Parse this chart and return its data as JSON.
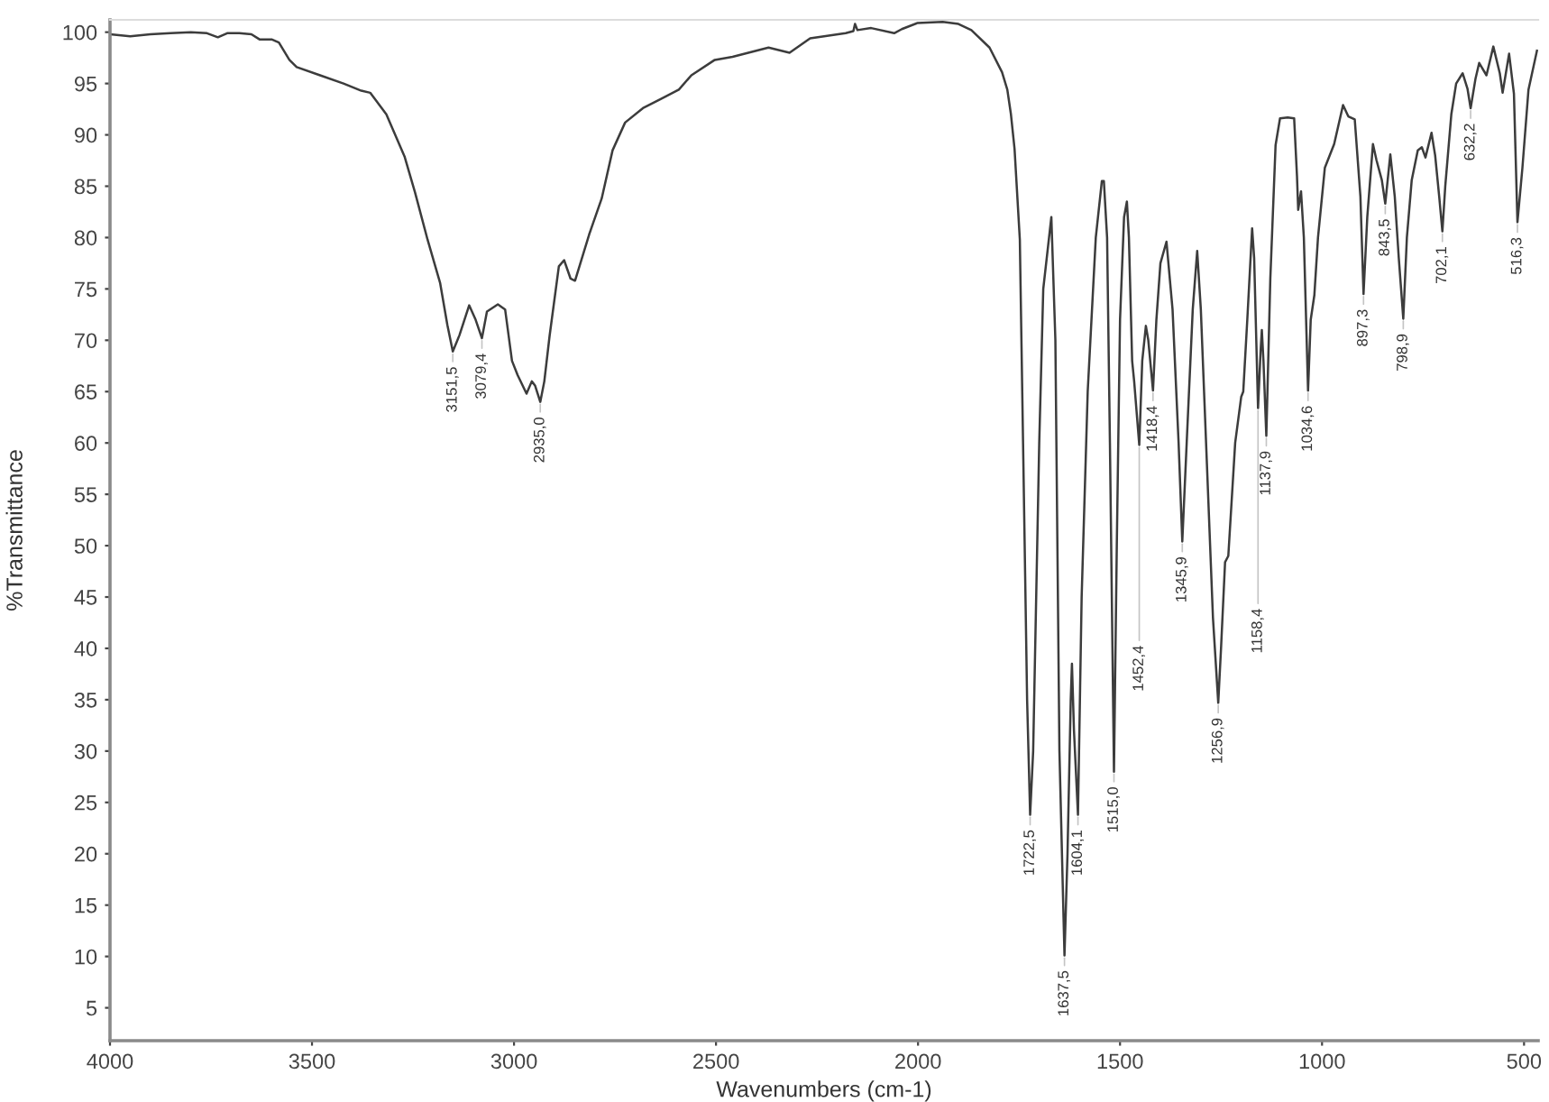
{
  "chart_data": {
    "type": "line",
    "xlabel": "Wavenumbers (cm-1)",
    "ylabel": "%Transmittance",
    "xlim": [
      4000,
      465
    ],
    "ylim": [
      1.8,
      101.2
    ],
    "xticks": [
      4000,
      3500,
      3000,
      2500,
      2000,
      1500,
      1000,
      500
    ],
    "yticks": [
      5,
      10,
      15,
      20,
      25,
      30,
      35,
      40,
      45,
      50,
      55,
      60,
      65,
      70,
      75,
      80,
      85,
      90,
      95,
      100
    ],
    "grid": false,
    "series": [
      {
        "color": "#3c3c3c",
        "x": [
          4000,
          3950,
          3900,
          3850,
          3800,
          3760,
          3733,
          3710,
          3680,
          3650,
          3630,
          3600,
          3582,
          3556,
          3538,
          3480,
          3422,
          3378,
          3356,
          3316,
          3271,
          3245,
          3214,
          3183,
          3165,
          3151.5,
          3135,
          3111,
          3095,
          3079.4,
          3067,
          3040,
          3022,
          3005,
          2991,
          2969,
          2956,
          2948,
          2935.0,
          2925,
          2912,
          2889,
          2876,
          2860,
          2849,
          2814,
          2783,
          2756,
          2725,
          2681,
          2636,
          2592,
          2561,
          2503,
          2459,
          2420,
          2370,
          2318,
          2267,
          2179,
          2160,
          2156,
          2150,
          2116,
          2059,
          2040,
          2001,
          1939,
          1900,
          1868,
          1823,
          1792,
          1779,
          1770,
          1761,
          1748,
          1740,
          1730,
          1722.5,
          1715,
          1700,
          1690,
          1670,
          1660,
          1650,
          1637.5,
          1630,
          1622,
          1619,
          1614,
          1604.1,
          1595,
          1580,
          1560,
          1545,
          1540,
          1532,
          1525,
          1515.0,
          1508,
          1500,
          1490,
          1483,
          1478,
          1470,
          1465,
          1452.4,
          1445,
          1436,
          1430,
          1418.4,
          1410,
          1400,
          1385,
          1370,
          1355,
          1345.9,
          1335,
          1320,
          1309,
          1300,
          1285,
          1270,
          1256.9,
          1250,
          1240,
          1232,
          1215,
          1200,
          1195,
          1185,
          1173,
          1168,
          1158.4,
          1152,
          1149,
          1145,
          1137.9,
          1128,
          1115,
          1104,
          1085,
          1069,
          1062,
          1059,
          1052,
          1045,
          1034.6,
          1028,
          1019,
          1010,
          993,
          970,
          948,
          935,
          919,
          905,
          897.3,
          888,
          874,
          865,
          852,
          843.5,
          831,
          820,
          810,
          798.9,
          790,
          778,
          763,
          753,
          744,
          729,
          720,
          710,
          702.1,
          695,
          680,
          668,
          652,
          640,
          632.2,
          620,
          611,
          593,
          576,
          560,
          553,
          545,
          537,
          525,
          516.3,
          504,
          489,
          468
        ],
        "values": [
          99.8,
          99.6,
          99.8,
          99.9,
          100.0,
          99.9,
          99.5,
          99.9,
          99.9,
          99.8,
          99.3,
          99.3,
          99.0,
          97.3,
          96.6,
          95.8,
          95.0,
          94.3,
          94.1,
          92.0,
          87.9,
          84.4,
          79.8,
          75.6,
          71.5,
          68.9,
          70.5,
          73.4,
          72.0,
          70.2,
          72.8,
          73.5,
          73.0,
          68.0,
          66.6,
          64.8,
          66.0,
          65.6,
          64.0,
          66.0,
          70.4,
          77.2,
          77.8,
          76.0,
          75.8,
          80.3,
          83.8,
          88.5,
          91.2,
          92.6,
          93.5,
          94.4,
          95.8,
          97.3,
          97.6,
          98.0,
          98.5,
          98.0,
          99.4,
          99.9,
          100.1,
          100.8,
          100.2,
          100.4,
          99.9,
          100.3,
          100.9,
          101.0,
          100.8,
          100.2,
          98.5,
          96.1,
          94.4,
          92.0,
          88.6,
          79.8,
          60,
          35,
          23.8,
          30,
          60,
          75,
          82,
          70,
          30,
          10.1,
          20,
          35,
          38.5,
          32,
          23.8,
          45,
          65,
          80,
          85.5,
          85.5,
          80,
          60,
          28.0,
          50,
          72,
          82,
          83.5,
          80,
          68,
          66,
          59.8,
          68,
          71.4,
          70,
          65.1,
          72,
          77.5,
          79.6,
          73,
          60,
          50.4,
          60,
          73,
          78.7,
          73,
          58,
          43,
          34.7,
          40,
          48.4,
          49,
          60,
          64.5,
          65.0,
          72,
          80.9,
          78,
          63.4,
          69,
          71.0,
          68,
          60.7,
          76,
          89,
          91.6,
          91.7,
          91.6,
          86,
          82.7,
          84.5,
          80,
          65.1,
          72,
          74.4,
          80,
          86.8,
          89.1,
          92.9,
          91.8,
          91.5,
          84,
          74.5,
          82,
          89.1,
          87.5,
          85.6,
          83.3,
          88.1,
          84,
          78,
          72.1,
          80,
          85.6,
          88.5,
          88.8,
          87.8,
          90.2,
          88,
          84,
          80.6,
          85,
          92,
          95.0,
          96.0,
          94.5,
          92.6,
          95.5,
          97.0,
          95.8,
          98.6,
          96,
          94.1,
          96,
          97.9,
          94,
          81.5,
          86.8,
          94.4,
          98.2
        ]
      }
    ],
    "annotations": [
      {
        "text": "3151,5",
        "x": 3151.5,
        "y": 68.9
      },
      {
        "text": "3079,4",
        "x": 3079.4,
        "y": 70.2
      },
      {
        "text": "2935,0",
        "x": 2935.0,
        "y": 64.0
      },
      {
        "text": "1722,5",
        "x": 1722.5,
        "y": 23.8
      },
      {
        "text": "1637,5",
        "x": 1637.5,
        "y": 10.1
      },
      {
        "text": "1604,1",
        "x": 1604.1,
        "y": 23.8
      },
      {
        "text": "1515,0",
        "x": 1515.0,
        "y": 28.0
      },
      {
        "text": "1452,4",
        "x": 1452.4,
        "y": 59.8
      },
      {
        "text": "1418,4",
        "x": 1418.4,
        "y": 65.1
      },
      {
        "text": "1345,9",
        "x": 1345.9,
        "y": 50.4
      },
      {
        "text": "1256,9",
        "x": 1256.9,
        "y": 34.7
      },
      {
        "text": "1158,4",
        "x": 1158.4,
        "y": 63.4
      },
      {
        "text": "1137,9",
        "x": 1137.9,
        "y": 60.7
      },
      {
        "text": "1034,6",
        "x": 1034.6,
        "y": 65.1
      },
      {
        "text": "897,3",
        "x": 897.3,
        "y": 74.5
      },
      {
        "text": "843,5",
        "x": 843.5,
        "y": 83.3
      },
      {
        "text": "798,9",
        "x": 798.9,
        "y": 72.1
      },
      {
        "text": "702,1",
        "x": 702.1,
        "y": 80.6
      },
      {
        "text": "632,2",
        "x": 632.2,
        "y": 92.6
      },
      {
        "text": "516,3",
        "x": 516.3,
        "y": 81.5
      }
    ]
  }
}
